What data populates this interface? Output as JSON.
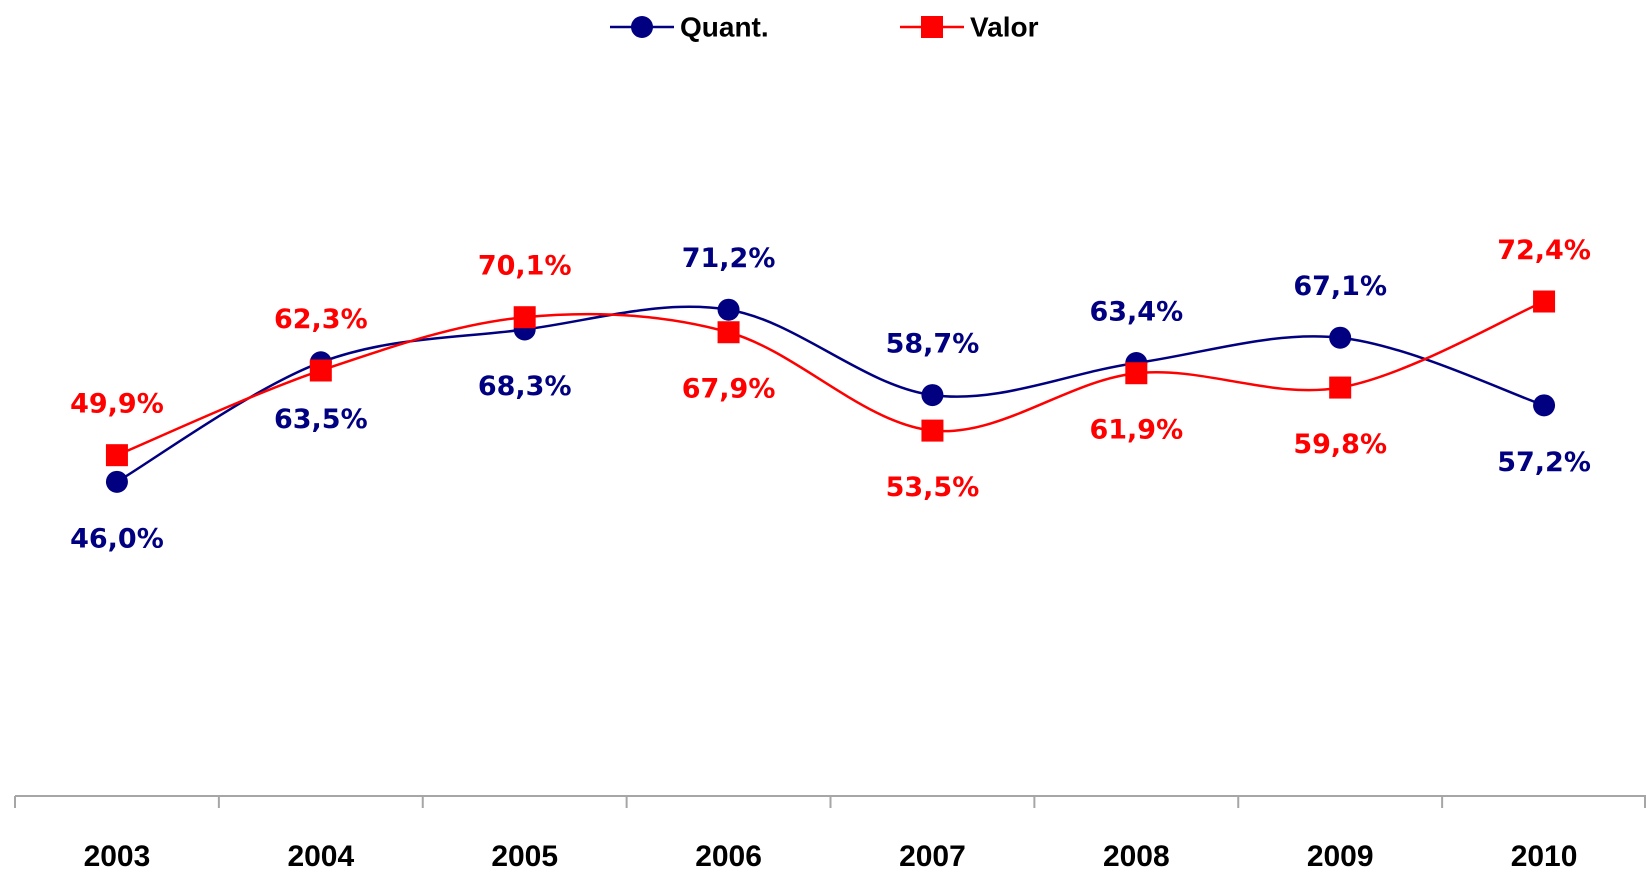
{
  "chart_data": {
    "type": "line",
    "categories": [
      "2003",
      "2004",
      "2005",
      "2006",
      "2007",
      "2008",
      "2009",
      "2010"
    ],
    "series": [
      {
        "name": "Quant.",
        "color": "#000080",
        "marker": "circle",
        "values": [
          46.0,
          63.5,
          68.3,
          71.2,
          58.7,
          63.4,
          67.1,
          57.2
        ],
        "value_labels": [
          "46,0%",
          "63,5%",
          "68,3%",
          "71,2%",
          "58,7%",
          "63,4%",
          "67,1%",
          "57,2%"
        ]
      },
      {
        "name": "Valor",
        "color": "#ff0000",
        "marker": "square",
        "values": [
          49.9,
          62.3,
          70.1,
          67.9,
          53.5,
          61.9,
          59.8,
          72.4
        ],
        "value_labels": [
          "49,9%",
          "62,3%",
          "70,1%",
          "67,9%",
          "53,5%",
          "61,9%",
          "59,8%",
          "72,4%"
        ]
      }
    ],
    "ylim": [
      0,
      100
    ],
    "smooth": true,
    "legend": "top"
  }
}
